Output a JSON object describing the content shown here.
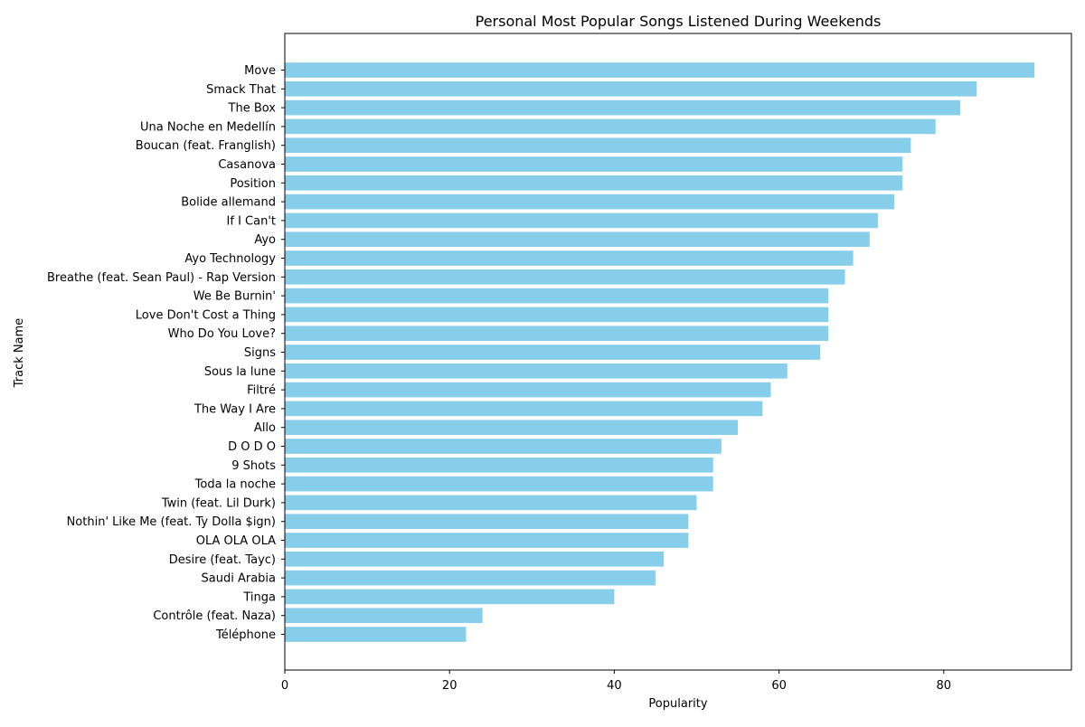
{
  "chart_data": {
    "type": "bar",
    "orientation": "horizontal",
    "title": "Personal Most Popular Songs Listened During Weekends",
    "xlabel": "Popularity",
    "ylabel": "Track Name",
    "xlim": [
      0,
      95.5
    ],
    "xticks": [
      0,
      20,
      40,
      60,
      80
    ],
    "grid": false,
    "bar_color": "#87ceeb",
    "categories": [
      "Move",
      "Smack That",
      "The Box",
      "Una Noche en Medellín",
      "Boucan (feat. Franglish)",
      "Casanova",
      "Position",
      "Bolide allemand",
      "If I Can't",
      "Ayo",
      "Ayo Technology",
      "Breathe (feat. Sean Paul) - Rap Version",
      "We Be Burnin'",
      "Love Don't Cost a Thing",
      "Who Do You Love?",
      "Signs",
      "Sous la lune",
      "Filtré",
      "The Way I Are",
      "Allo",
      "D O D O",
      "9 Shots",
      "Toda la noche",
      "Twin (feat. Lil Durk)",
      "Nothin' Like Me (feat. Ty Dolla $ign)",
      "OLA OLA OLA",
      "Desire (feat. Tayc)",
      "Saudi Arabia",
      "Tinga",
      "Contrôle (feat. Naza)",
      "Téléphone"
    ],
    "values": [
      91,
      84,
      82,
      79,
      76,
      75,
      75,
      74,
      72,
      71,
      69,
      68,
      66,
      66,
      66,
      65,
      61,
      59,
      58,
      55,
      53,
      52,
      52,
      50,
      49,
      49,
      46,
      45,
      40,
      24,
      22
    ]
  }
}
